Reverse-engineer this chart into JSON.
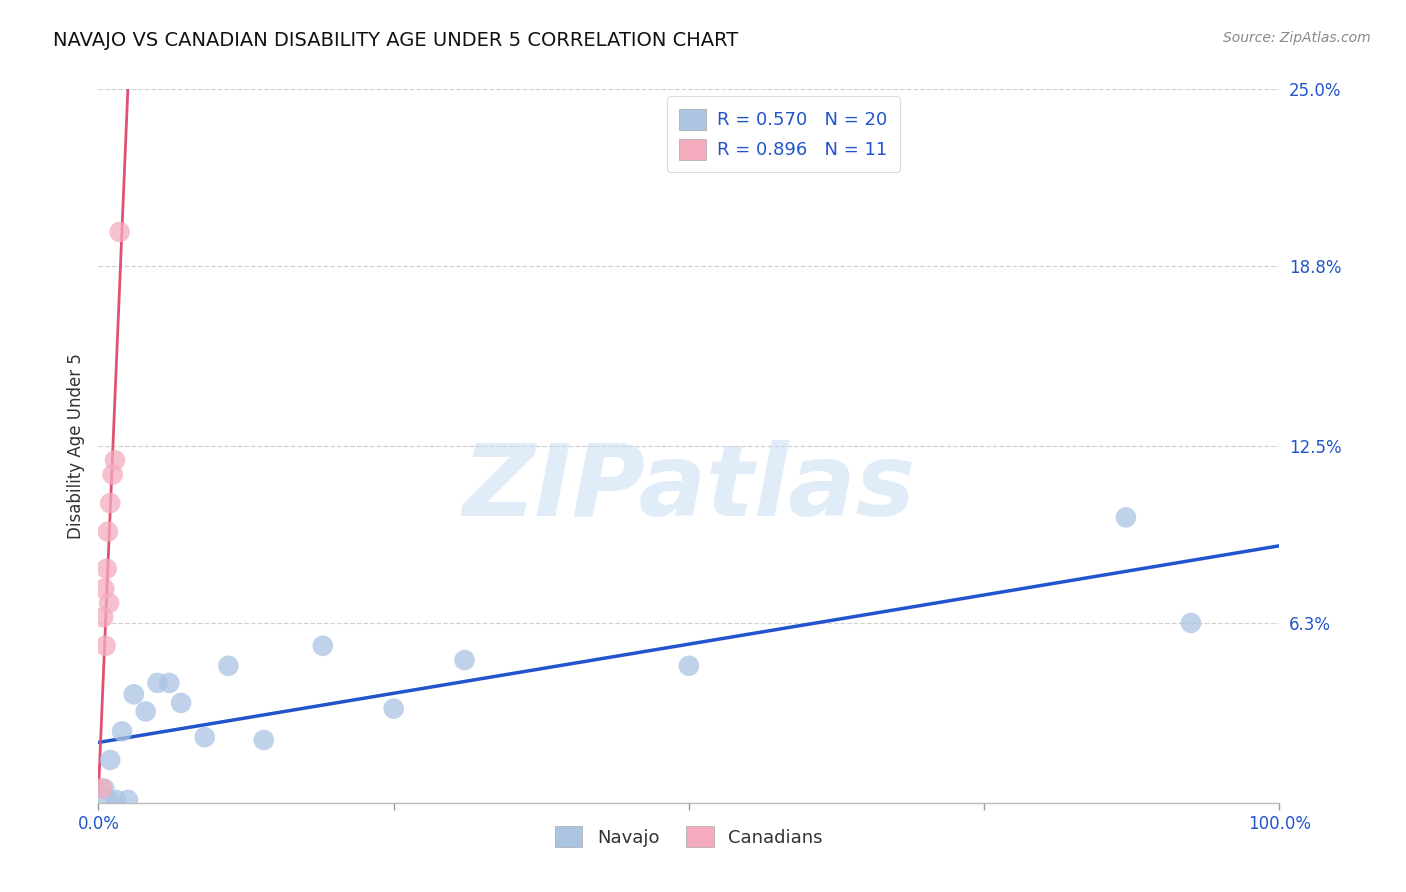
{
  "title": "NAVAJO VS CANADIAN DISABILITY AGE UNDER 5 CORRELATION CHART",
  "source": "Source: ZipAtlas.com",
  "ylabel": "Disability Age Under 5",
  "xlim": [
    0.0,
    1.0
  ],
  "ylim": [
    0.0,
    0.25
  ],
  "ytick_vals": [
    0.0,
    0.063,
    0.125,
    0.188,
    0.25
  ],
  "ytick_labels": [
    "",
    "6.3%",
    "12.5%",
    "18.8%",
    "25.0%"
  ],
  "xtick_vals": [
    0.0,
    0.25,
    0.5,
    0.75,
    1.0
  ],
  "xtick_labels": [
    "0.0%",
    "",
    "",
    "",
    "100.0%"
  ],
  "navajo_x": [
    0.005,
    0.008,
    0.01,
    0.015,
    0.02,
    0.025,
    0.03,
    0.04,
    0.05,
    0.06,
    0.07,
    0.09,
    0.11,
    0.14,
    0.19,
    0.25,
    0.31,
    0.5,
    0.87,
    0.925
  ],
  "navajo_y": [
    0.005,
    0.001,
    0.015,
    0.001,
    0.025,
    0.001,
    0.038,
    0.032,
    0.042,
    0.042,
    0.035,
    0.023,
    0.048,
    0.022,
    0.055,
    0.033,
    0.05,
    0.048,
    0.1,
    0.063
  ],
  "canadian_x": [
    0.003,
    0.004,
    0.005,
    0.006,
    0.007,
    0.008,
    0.009,
    0.01,
    0.012,
    0.014,
    0.018
  ],
  "canadian_y": [
    0.005,
    0.065,
    0.075,
    0.055,
    0.082,
    0.095,
    0.07,
    0.105,
    0.115,
    0.12,
    0.2
  ],
  "navajo_color": "#aac4e2",
  "canadian_color": "#f5abbe",
  "navajo_line_color": "#2255cc",
  "canadian_line_color": "#e05070",
  "navajo_R": 0.57,
  "navajo_N": 20,
  "canadian_R": 0.896,
  "canadian_N": 11,
  "legend_color": "#2255cc",
  "watermark_text": "ZIPatlas",
  "watermark_color": "#c8ddf2",
  "background_color": "#ffffff",
  "grid_color": "#cccccc",
  "title_fontsize": 14,
  "source_fontsize": 10,
  "tick_fontsize": 12,
  "ylabel_fontsize": 12
}
